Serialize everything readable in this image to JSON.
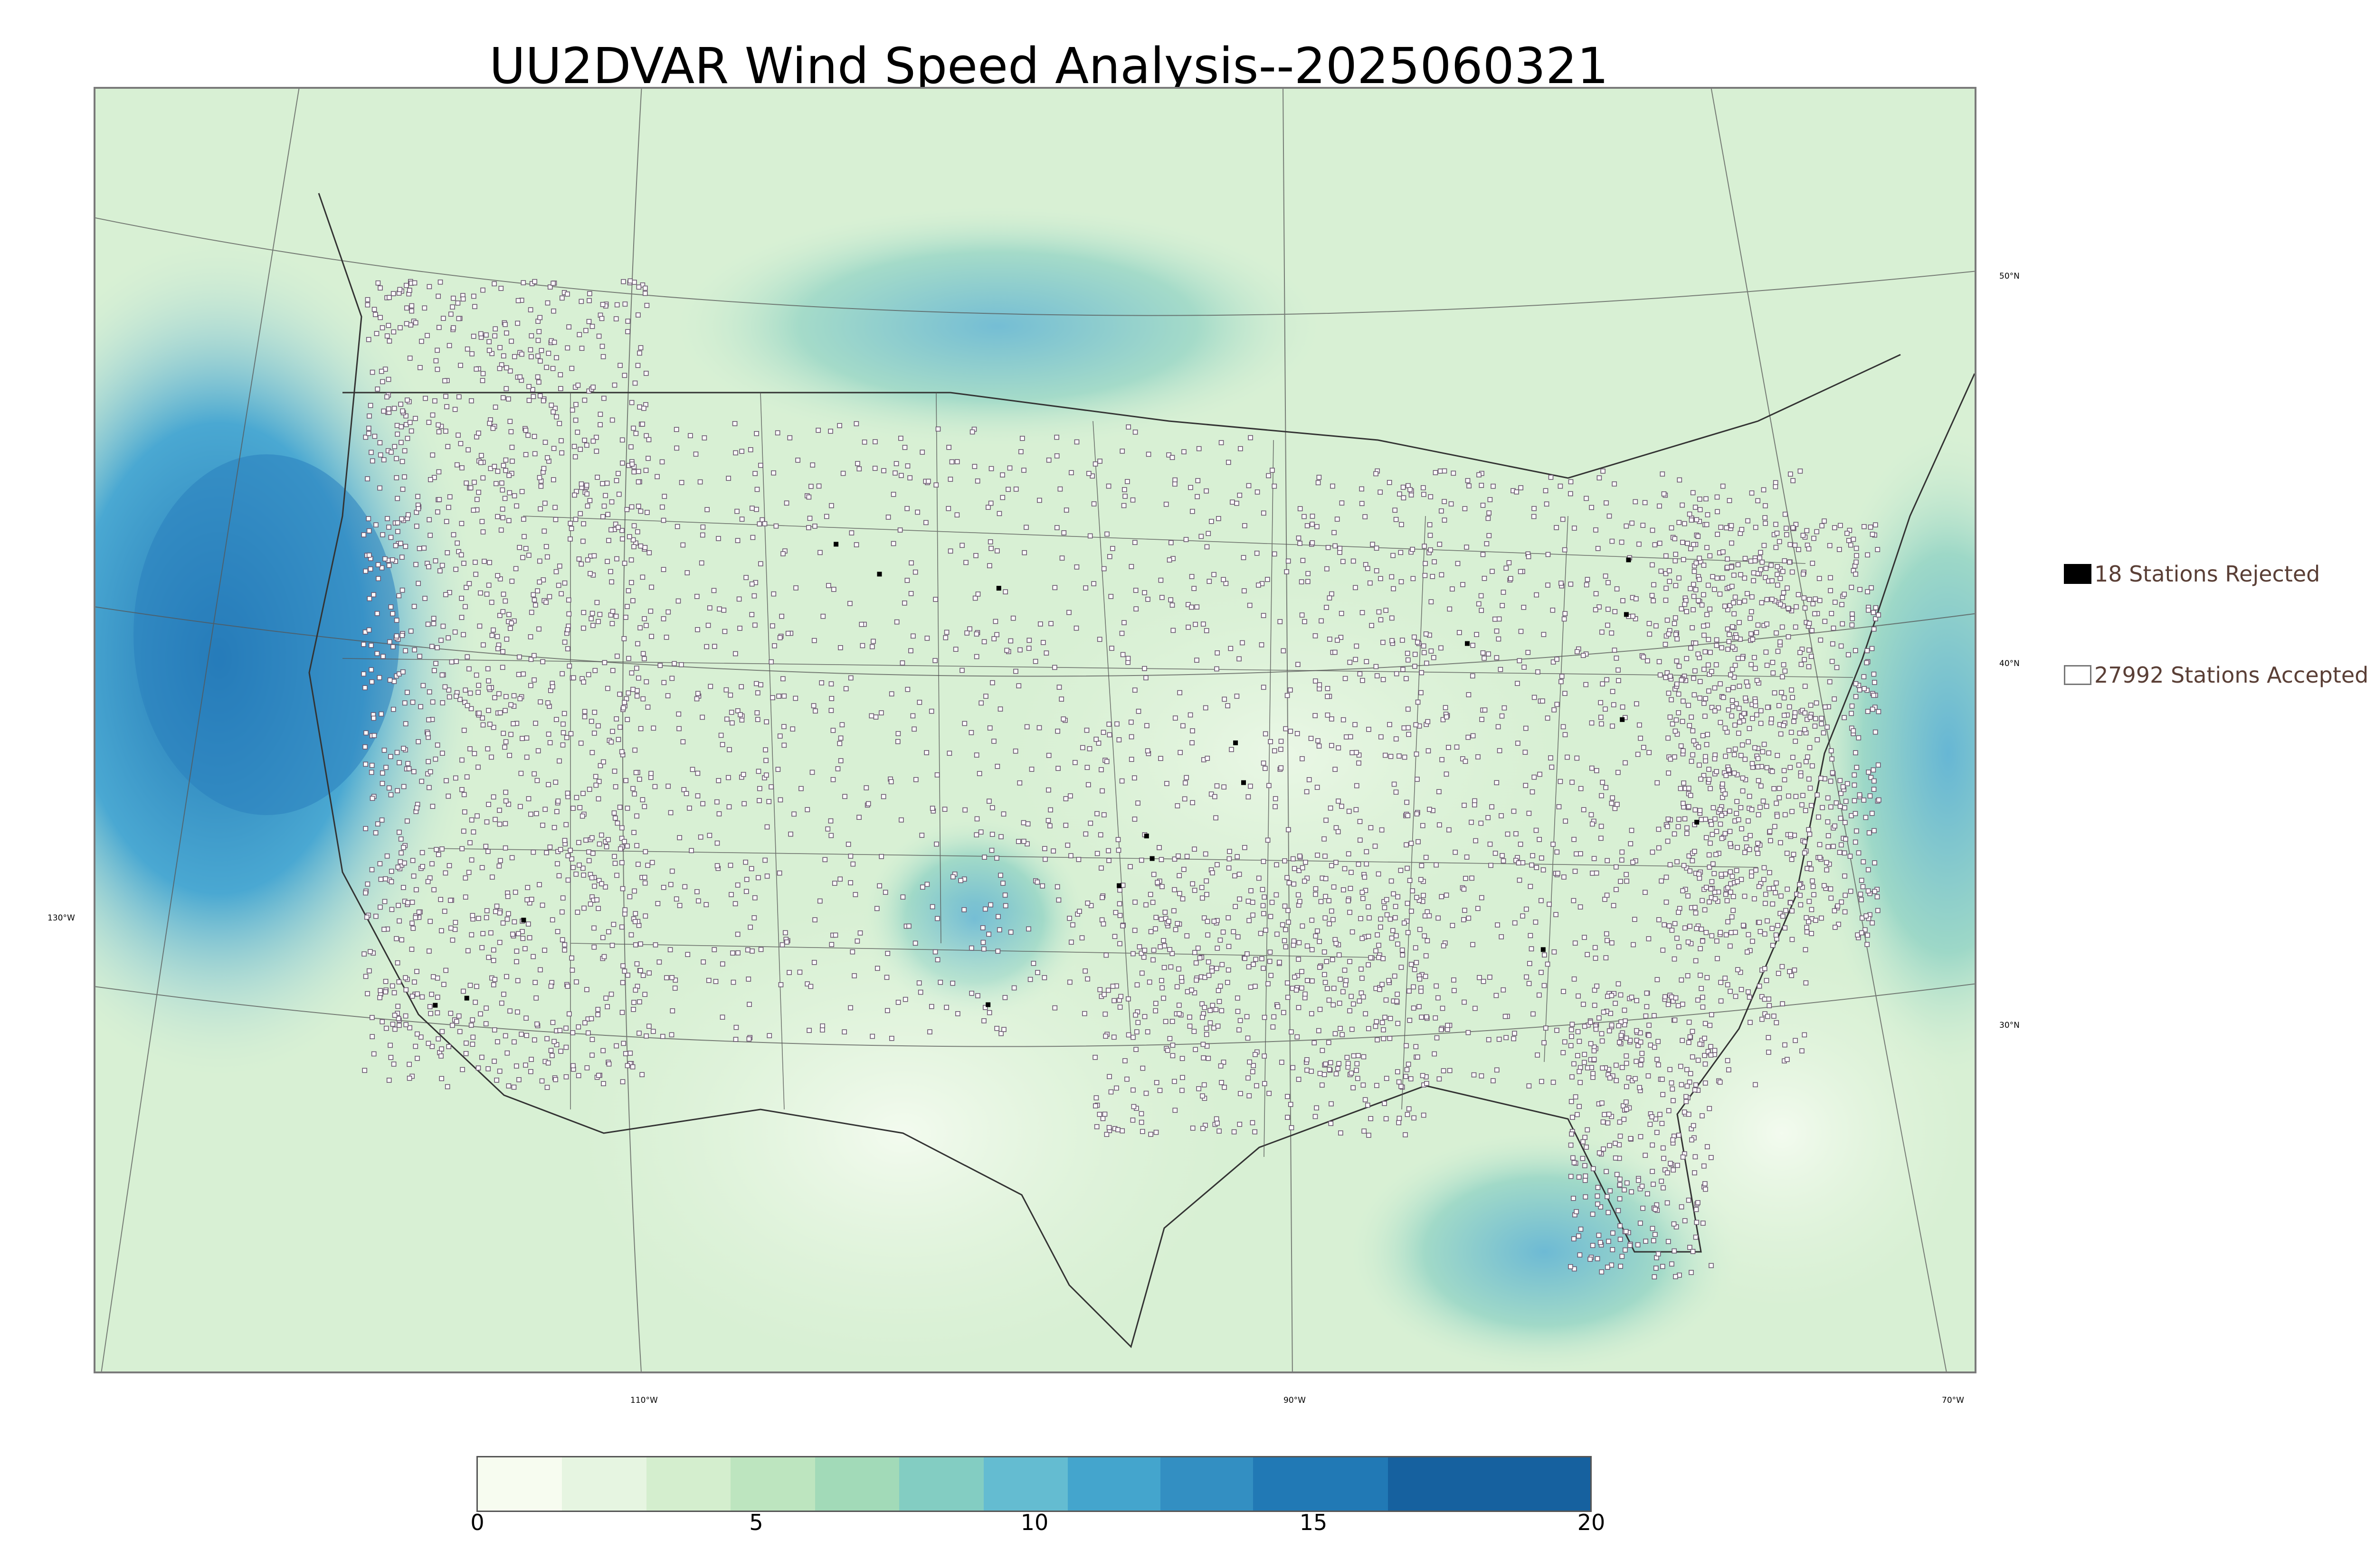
{
  "title": "UU2DVAR Wind Speed Analysis--2025060321",
  "map": {
    "projection": "lambert-conformal",
    "field": "wind speed",
    "region": "CONUS",
    "colors": {
      "land_base": "#d5eed2",
      "ocean_strong": "#2f86c0",
      "station_marker": "#6b5870",
      "border_line": "#444444"
    },
    "lat_labels": [
      "50°N",
      "40°N",
      "30°N"
    ],
    "lon_labels": [
      "130°W",
      "110°W",
      "90°W",
      "70°W"
    ]
  },
  "legend": {
    "rejected": {
      "label": "18 Stations Rejected",
      "count": 18,
      "color": "#000000"
    },
    "accepted": {
      "label": "27992 Stations Accepted",
      "count": 27992,
      "color": "#ffffff"
    }
  },
  "colorbar": {
    "ticks": [
      "0",
      "5",
      "10",
      "15",
      "20"
    ],
    "min": 0,
    "max": 20,
    "colors": [
      "#f7fcf0",
      "#e6f5e1",
      "#d4eece",
      "#bde5bf",
      "#a2dab8",
      "#83cdc2",
      "#64bcd1",
      "#44a5cd",
      "#338fc2",
      "#2179b5",
      "#16619f"
    ]
  }
}
